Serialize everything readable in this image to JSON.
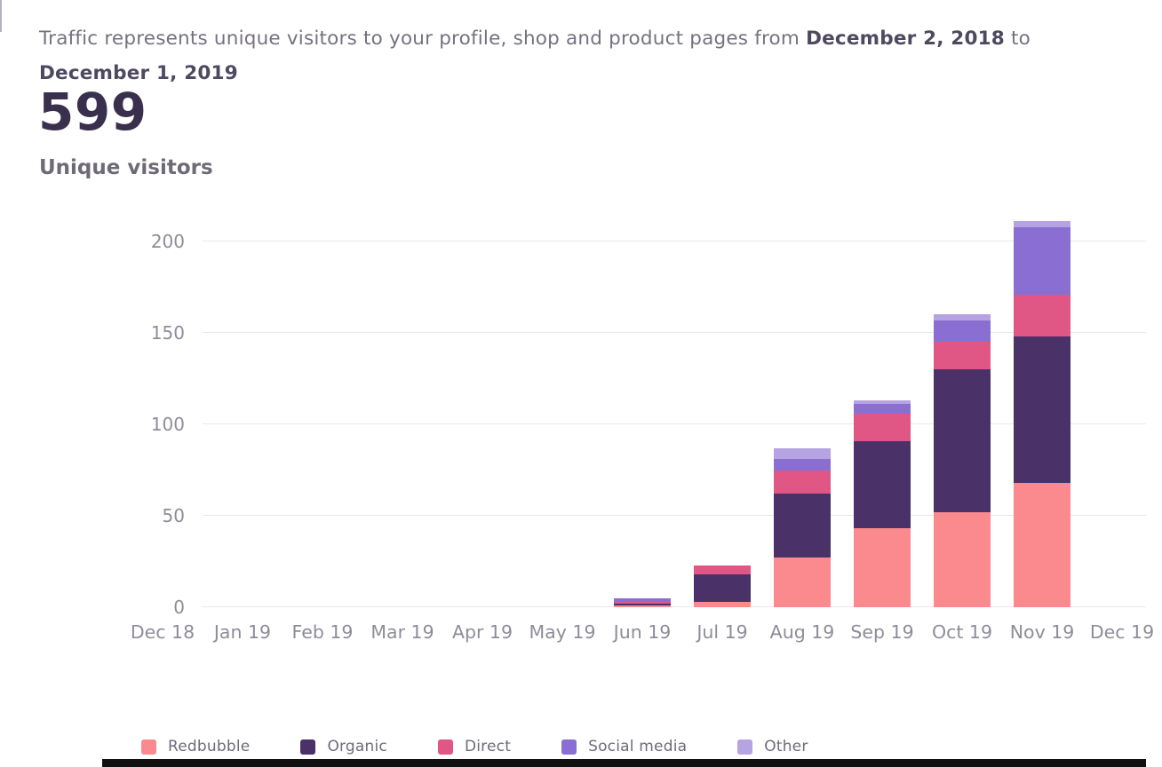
{
  "header": {
    "text_before": "Traffic represents unique visitors to your profile, shop and product pages from",
    "date_from": "December 2, 2018",
    "text_between": "to",
    "date_to": "December 1, 2019"
  },
  "metric": {
    "value": "599",
    "label": "Unique visitors"
  },
  "chart_data": {
    "type": "bar",
    "stacked": true,
    "title": "",
    "xlabel": "",
    "ylabel": "",
    "ylim": [
      0,
      200
    ],
    "yticks": [
      0,
      50,
      100,
      150,
      200
    ],
    "grid": true,
    "legend_position": "bottom",
    "categories": [
      "Dec 18",
      "Jan 19",
      "Feb 19",
      "Mar 19",
      "Apr 19",
      "May 19",
      "Jun 19",
      "Jul 19",
      "Aug 19",
      "Sep 19",
      "Oct 19",
      "Nov 19",
      "Dec 19"
    ],
    "series": [
      {
        "name": "Redbubble",
        "color": "#fb8a8e",
        "values": [
          0,
          0,
          0,
          0,
          0,
          0,
          1,
          3,
          27,
          43,
          52,
          68,
          0
        ]
      },
      {
        "name": "Organic",
        "color": "#4a3168",
        "values": [
          0,
          0,
          0,
          0,
          0,
          0,
          1,
          15,
          35,
          48,
          78,
          80,
          0
        ]
      },
      {
        "name": "Direct",
        "color": "#e05684",
        "values": [
          0,
          0,
          0,
          0,
          0,
          0,
          1,
          5,
          13,
          15,
          15,
          23,
          0
        ]
      },
      {
        "name": "Social media",
        "color": "#8a6ed2",
        "values": [
          0,
          0,
          0,
          0,
          0,
          0,
          2,
          0,
          6,
          5,
          12,
          37,
          0
        ]
      },
      {
        "name": "Other",
        "color": "#b6a3e2",
        "values": [
          0,
          0,
          0,
          0,
          0,
          0,
          0,
          0,
          6,
          2,
          3,
          3,
          0
        ]
      }
    ],
    "total_unique_visitors": 599
  }
}
